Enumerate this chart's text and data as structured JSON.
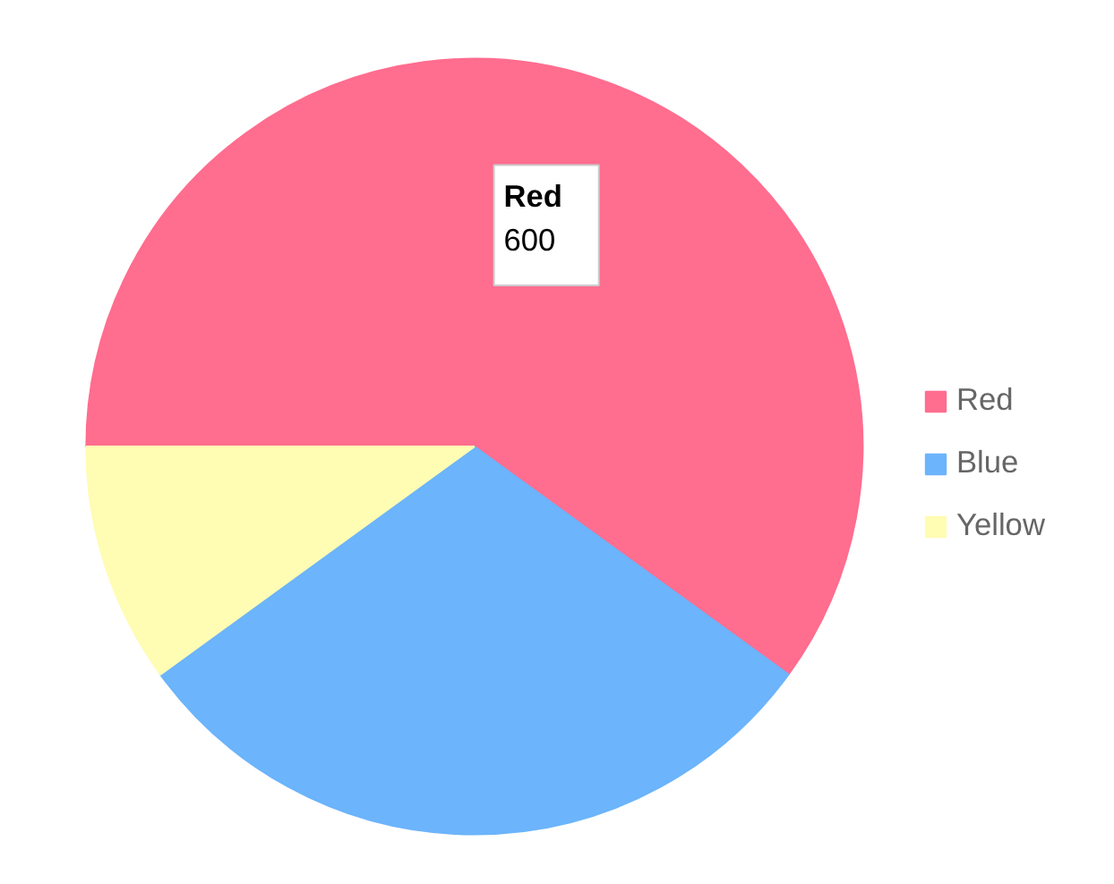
{
  "chart_data": {
    "type": "pie",
    "categories": [
      "Red",
      "Blue",
      "Yellow"
    ],
    "values": [
      600,
      300,
      100
    ],
    "colors": [
      "#ff6d8f",
      "#6cb4fb",
      "#fffcb4"
    ],
    "value_labels": [
      "600",
      null,
      null
    ],
    "legend": "right"
  }
}
